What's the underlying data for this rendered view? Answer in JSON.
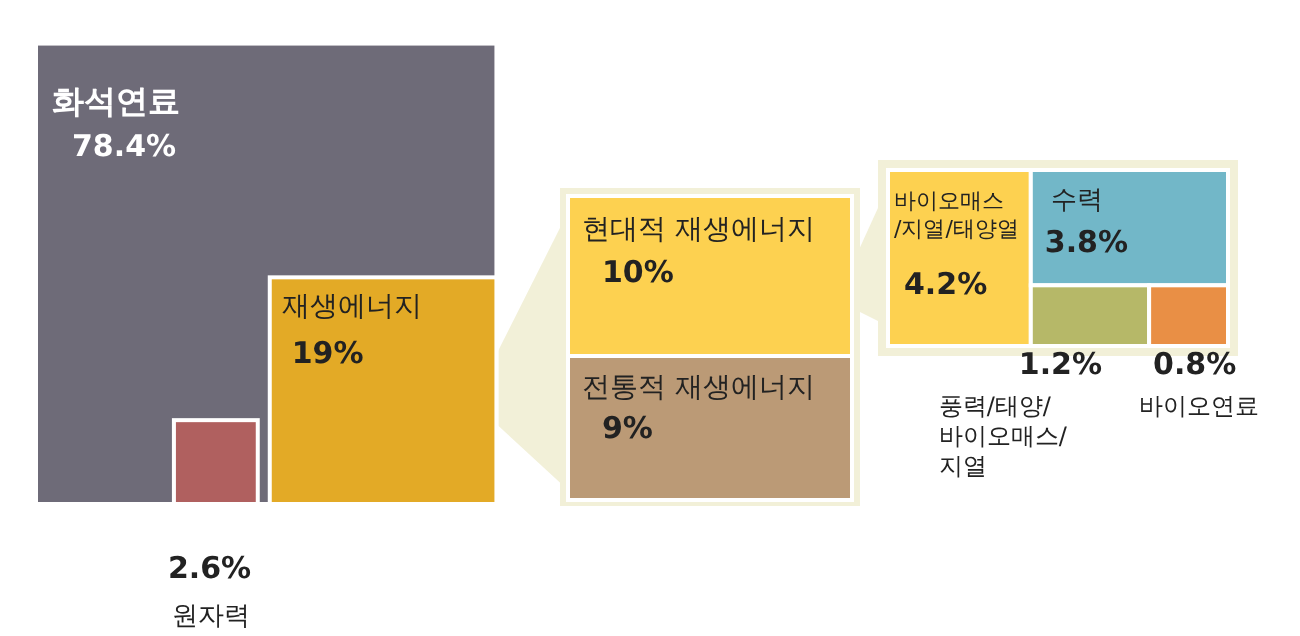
{
  "chart_data": {
    "type": "other",
    "categories": [
      "화석연료",
      "재생에너지",
      "원자력",
      "현대적 재생에너지",
      "전통적 재생에너지",
      "바이오매스\n/지열/태양열",
      "수력",
      "풍력/태양/\n바이오매스/\n지열",
      "바이오연료"
    ],
    "values": [
      78.4,
      19,
      2.6,
      10,
      9,
      4.2,
      3.8,
      1.2,
      0.8
    ],
    "value_labels": [
      "78.4%",
      "19%",
      "2.6%",
      "10%",
      "9%",
      "4.2%",
      "3.8%",
      "1.2%",
      "0.8%"
    ],
    "colors": [
      "#6e6b78",
      "#e3aa26",
      "#b0605f",
      "#fdd150",
      "#bb9a76",
      "#fdd150",
      "#72b7c8",
      "#b6b868",
      "#e98f45"
    ]
  }
}
